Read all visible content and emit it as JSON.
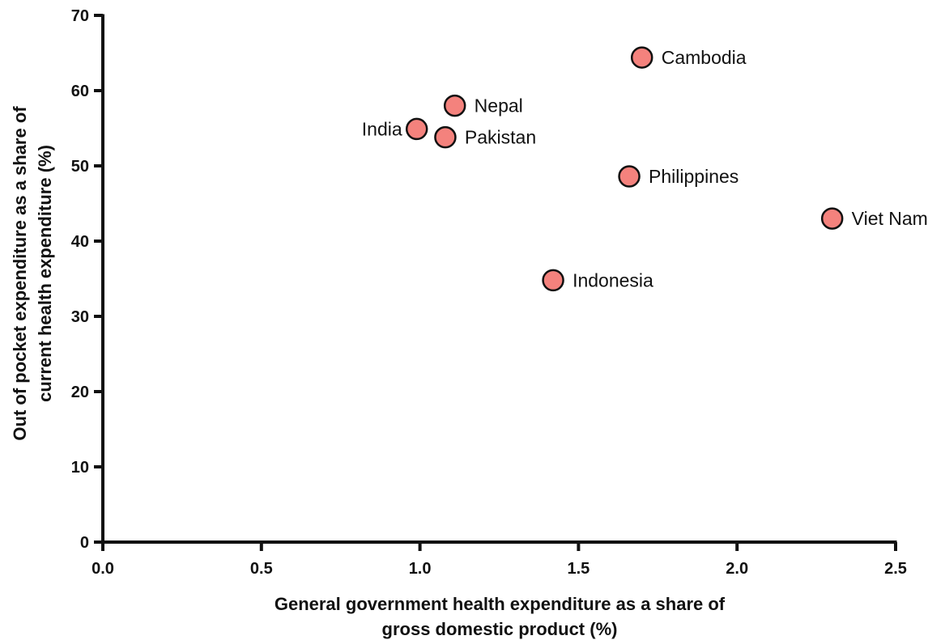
{
  "chart_data": {
    "type": "scatter",
    "xlabel_lines": [
      "General government health expenditure as a share of",
      "gross domestic product (%)"
    ],
    "ylabel_lines": [
      "Out of pocket expenditure as a share of",
      "current health expenditure  (%)"
    ],
    "xlim": [
      0,
      2.5
    ],
    "ylim": [
      0,
      70
    ],
    "x_ticks": [
      "0.0",
      "0.5",
      "1.0",
      "1.5",
      "2.0",
      "2.5"
    ],
    "y_ticks": [
      "0",
      "10",
      "20",
      "30",
      "40",
      "50",
      "60",
      "70"
    ],
    "grid": false,
    "marker_color": "#f4827d",
    "marker_edge_color": "#111111",
    "points": [
      {
        "label": "Cambodia",
        "x": 1.7,
        "y": 64.4,
        "label_side": "right"
      },
      {
        "label": "Nepal",
        "x": 1.11,
        "y": 58.0,
        "label_side": "right"
      },
      {
        "label": "India",
        "x": 0.99,
        "y": 54.9,
        "label_side": "left"
      },
      {
        "label": "Pakistan",
        "x": 1.08,
        "y": 53.8,
        "label_side": "right"
      },
      {
        "label": "Philippines",
        "x": 1.66,
        "y": 48.6,
        "label_side": "right"
      },
      {
        "label": "Viet Nam",
        "x": 2.3,
        "y": 43.0,
        "label_side": "right"
      },
      {
        "label": "Indonesia",
        "x": 1.42,
        "y": 34.8,
        "label_side": "right"
      }
    ]
  }
}
